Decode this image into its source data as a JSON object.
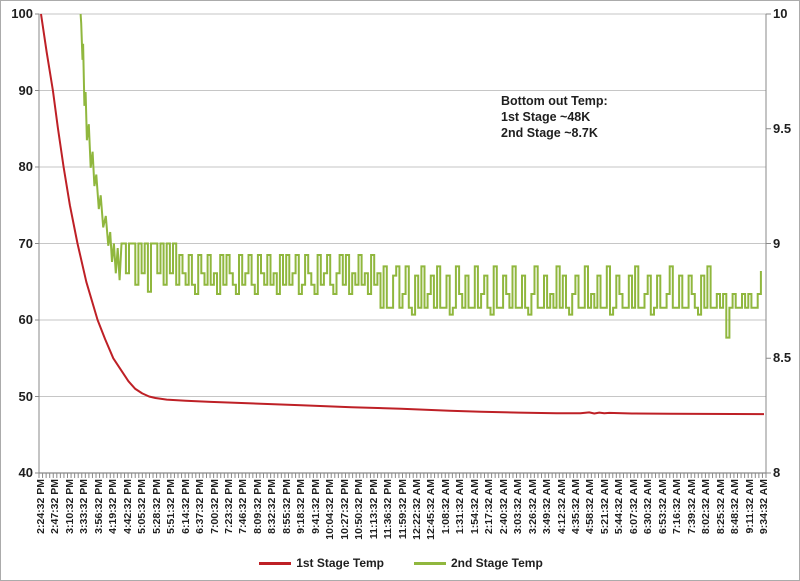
{
  "chart_data": {
    "type": "line",
    "title": "",
    "grid": true,
    "annotation": {
      "line1": "Bottom out Temp:",
      "line2": "1st Stage ~48K",
      "line3": "2nd Stage ~8.7K"
    },
    "left_axis": {
      "ticks": [
        100,
        90,
        80,
        70,
        60,
        50,
        40
      ],
      "min": 40,
      "max": 100
    },
    "right_axis": {
      "ticks": [
        10,
        9.5,
        9,
        8.5,
        8
      ],
      "min": 8,
      "max": 10
    },
    "x_axis": {
      "interval_minutes": 23,
      "tick_labels": [
        "2:24:32 PM",
        "2:47:32 PM",
        "3:10:32 PM",
        "3:33:32 PM",
        "3:56:32 PM",
        "4:19:32 PM",
        "4:42:32 PM",
        "5:05:32 PM",
        "5:28:32 PM",
        "5:51:32 PM",
        "6:14:32 PM",
        "6:37:32 PM",
        "7:00:32 PM",
        "7:23:32 PM",
        "7:46:32 PM",
        "8:09:32 PM",
        "8:32:32 PM",
        "8:55:32 PM",
        "9:18:32 PM",
        "9:41:32 PM",
        "10:04:32 PM",
        "10:27:32 PM",
        "10:50:32 PM",
        "11:13:32 PM",
        "11:36:32 PM",
        "11:59:32 PM",
        "12:22:32 AM",
        "12:45:32 AM",
        "1:08:32 AM",
        "1:31:32 AM",
        "1:54:32 AM",
        "2:17:32 AM",
        "2:40:32 AM",
        "3:03:32 AM",
        "3:26:32 AM",
        "3:49:32 AM",
        "4:12:32 AM",
        "4:35:32 AM",
        "4:58:32 AM",
        "5:21:32 AM",
        "5:44:32 AM",
        "6:07:32 AM",
        "6:30:32 AM",
        "6:53:32 AM",
        "7:16:32 AM",
        "7:39:32 AM",
        "8:02:32 AM",
        "8:25:32 AM",
        "8:48:32 AM",
        "9:11:32 AM",
        "9:34:32 AM"
      ]
    },
    "colors": {
      "grid": "#c6c6c6",
      "axis": "#898989",
      "text": "#1f1f1f"
    },
    "series": [
      {
        "name": "1st Stage Temp",
        "color": "#be2026",
        "axis": "left",
        "units": "K",
        "points": [
          [
            0,
            100
          ],
          [
            9,
            95
          ],
          [
            19,
            90
          ],
          [
            27,
            85
          ],
          [
            36,
            80
          ],
          [
            46,
            75
          ],
          [
            58,
            70
          ],
          [
            72,
            65
          ],
          [
            90,
            60
          ],
          [
            102,
            57.5
          ],
          [
            115,
            55
          ],
          [
            127,
            53.5
          ],
          [
            139,
            52
          ],
          [
            150,
            51
          ],
          [
            161,
            50.4
          ],
          [
            172,
            50
          ],
          [
            182,
            49.8
          ],
          [
            200,
            49.6
          ],
          [
            230,
            49.45
          ],
          [
            270,
            49.3
          ],
          [
            335,
            49.1
          ],
          [
            414,
            48.85
          ],
          [
            494,
            48.6
          ],
          [
            573,
            48.4
          ],
          [
            650,
            48.15
          ],
          [
            700,
            48
          ],
          [
            760,
            47.9
          ],
          [
            820,
            47.82
          ],
          [
            858,
            47.8
          ],
          [
            872,
            47.92
          ],
          [
            880,
            47.78
          ],
          [
            888,
            47.9
          ],
          [
            896,
            47.8
          ],
          [
            904,
            47.86
          ],
          [
            940,
            47.78
          ],
          [
            1000,
            47.74
          ],
          [
            1150,
            47.7
          ]
        ]
      },
      {
        "name": "2nd Stage Temp",
        "color": "#90b73e",
        "axis": "right",
        "units": "K",
        "descent_points": [
          [
            63,
            10
          ],
          [
            64,
            9.96
          ],
          [
            66,
            9.8
          ],
          [
            67,
            9.87
          ],
          [
            69,
            9.6
          ],
          [
            71,
            9.66
          ],
          [
            73,
            9.45
          ],
          [
            76,
            9.52
          ],
          [
            79,
            9.33
          ],
          [
            82,
            9.4
          ],
          [
            85,
            9.25
          ],
          [
            88,
            9.3
          ],
          [
            92,
            9.15
          ],
          [
            95,
            9.21
          ],
          [
            99,
            9.07
          ],
          [
            103,
            9.12
          ],
          [
            107,
            8.99
          ],
          [
            110,
            9.05
          ],
          [
            113,
            8.92
          ],
          [
            116,
            9.0
          ],
          [
            119,
            8.87
          ],
          [
            122,
            8.98
          ],
          [
            125,
            8.84
          ],
          [
            128,
            9.0
          ]
        ],
        "noise": {
          "t0": 130,
          "dt": 5,
          "values": [
            9.0,
            8.87,
            9.0,
            9.0,
            8.82,
            9.0,
            8.87,
            9.0,
            8.79,
            9.0,
            9.0,
            8.87,
            9.0,
            8.82,
            9.0,
            8.87,
            9.0,
            8.82,
            8.95,
            8.87,
            8.82,
            8.95,
            8.82,
            8.78,
            8.95,
            8.87,
            8.82,
            8.95,
            8.82,
            8.87,
            8.78,
            8.95,
            8.82,
            8.95,
            8.87,
            8.82,
            8.78,
            8.95,
            8.82,
            8.87,
            8.95,
            8.82,
            8.78,
            8.95,
            8.87,
            8.82,
            8.95,
            8.82,
            8.87,
            8.78,
            8.95,
            8.82,
            8.95,
            8.82,
            8.87,
            8.95,
            8.78,
            8.82,
            8.95,
            8.87,
            8.82,
            8.78,
            8.95,
            8.82,
            8.87,
            8.95,
            8.82,
            8.78,
            8.87,
            8.95,
            8.82,
            8.95,
            8.78,
            8.87,
            8.82,
            8.95,
            8.82,
            8.87,
            8.78,
            8.95,
            8.82,
            8.87,
            8.72,
            8.9,
            8.72,
            8.72,
            8.86,
            8.9,
            8.72,
            8.78,
            8.9,
            8.72,
            8.69,
            8.86,
            8.72,
            8.9,
            8.72,
            8.78,
            8.86,
            8.72,
            8.9,
            8.72,
            8.72,
            8.86,
            8.69,
            8.72,
            8.9,
            8.78,
            8.72,
            8.86,
            8.72,
            8.72,
            8.9,
            8.72,
            8.78,
            8.86,
            8.72,
            8.69,
            8.9,
            8.72,
            8.72,
            8.86,
            8.78,
            8.72,
            8.9,
            8.72,
            8.72,
            8.86,
            8.72,
            8.69,
            8.78,
            8.9,
            8.72,
            8.72,
            8.86,
            8.72,
            8.78,
            8.72,
            8.9,
            8.72,
            8.86,
            8.72,
            8.69,
            8.78,
            8.86,
            8.72,
            8.72,
            8.9,
            8.72,
            8.78,
            8.72,
            8.86,
            8.72,
            8.72,
            8.9,
            8.69,
            8.72,
            8.86,
            8.78,
            8.72,
            8.72,
            8.86,
            8.72,
            8.9,
            8.72,
            8.72,
            8.78,
            8.86,
            8.69,
            8.72,
            8.86,
            8.72,
            8.72,
            8.78,
            8.9,
            8.72,
            8.72,
            8.86,
            8.72,
            8.72,
            8.86,
            8.78,
            8.72,
            8.69,
            8.86,
            8.72,
            8.9,
            8.72,
            8.72,
            8.78,
            8.72,
            8.78,
            8.59,
            8.72,
            8.78,
            8.72,
            8.72,
            8.78,
            8.72,
            8.78,
            8.72,
            8.72,
            8.78,
            8.88
          ]
        }
      }
    ],
    "legend_position": "bottom"
  }
}
